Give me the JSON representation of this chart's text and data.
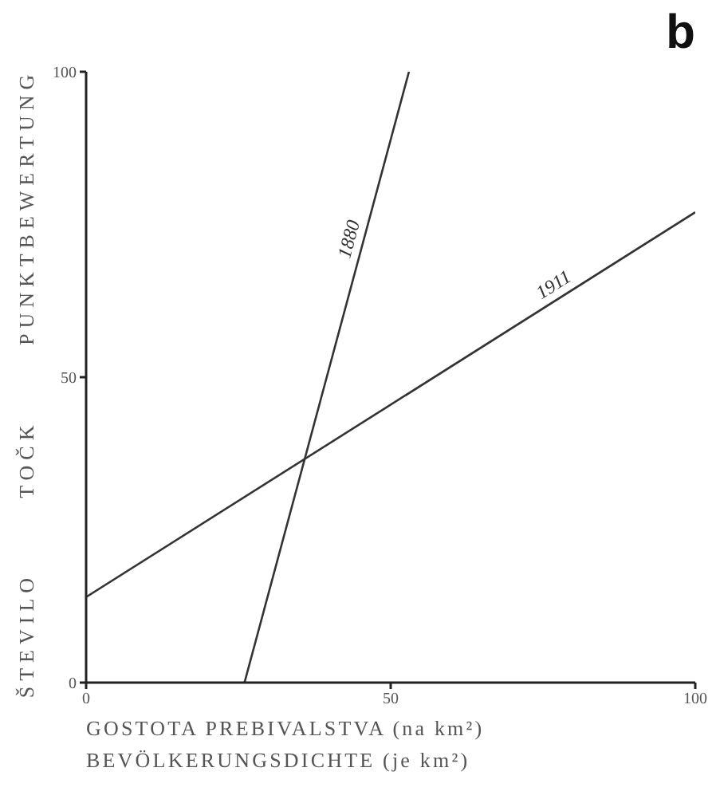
{
  "chart_data": {
    "type": "line",
    "title": "b",
    "xlabel": "GOSTOTA PREBIVALSTVA (na km²)\nBEVÖLKERUNGSDICHTE (je km²)",
    "ylabel": "ŠTEVILO TOČK PUNKTBEWERTUNG",
    "xlim": [
      0,
      100
    ],
    "ylim": [
      0,
      100
    ],
    "xticks": [
      0,
      50,
      100
    ],
    "yticks": [
      0,
      50,
      100
    ],
    "line_style": "solid",
    "series": [
      {
        "name": "1880",
        "color": "#333333",
        "x": [
          26,
          53
        ],
        "values": [
          0,
          100
        ]
      },
      {
        "name": "1911",
        "color": "#333333",
        "x": [
          0,
          100
        ],
        "values": [
          14,
          77
        ]
      }
    ]
  }
}
